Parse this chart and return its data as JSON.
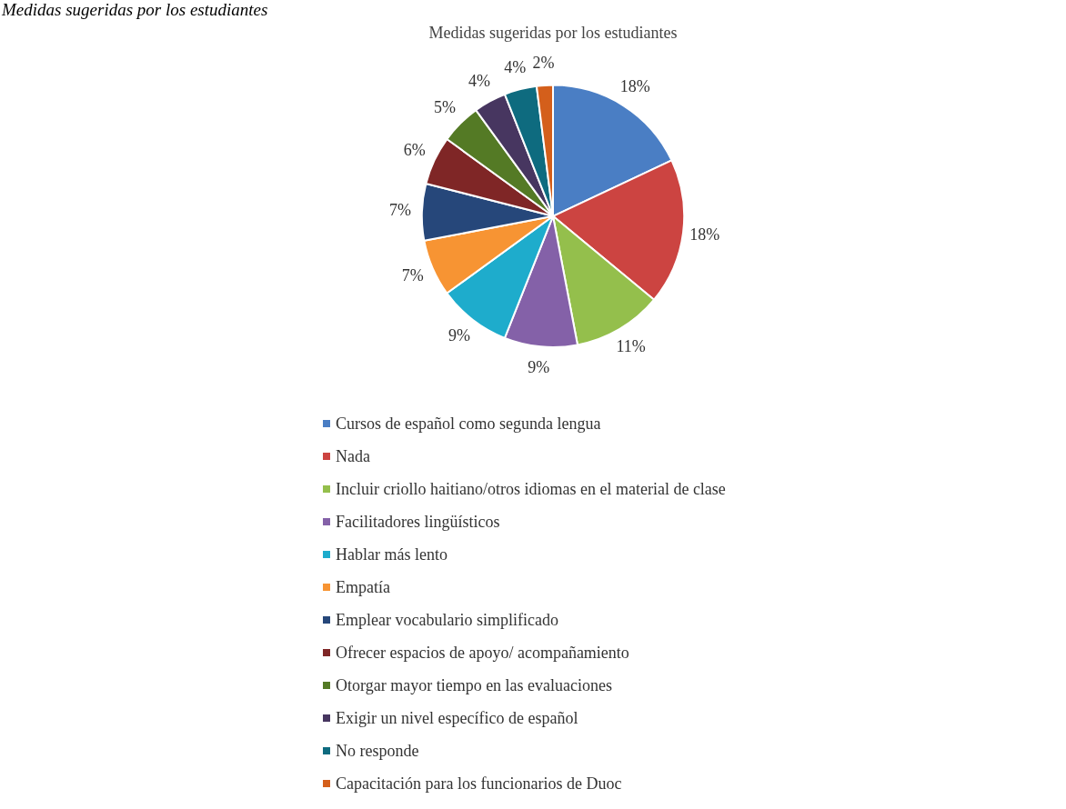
{
  "chart_data": {
    "type": "pie",
    "title": "Medidas sugeridas por los estudiantes",
    "annotations": [
      "Medidas sugeridas por los estudiantes"
    ],
    "categories": [
      "Cursos de español como segunda lengua",
      "Nada",
      "Incluir criollo haitiano/otros idiomas en el material de clase",
      "Facilitadores lingüísticos",
      "Hablar más lento",
      "Empatía",
      "Emplear vocabulario simplificado",
      "Ofrecer espacios de apoyo/ acompañamiento",
      "Otorgar mayor tiempo en las evaluaciones",
      "Exigir un nivel específico de español",
      "No responde",
      "Capacitación para los funcionarios de Duoc"
    ],
    "values": [
      18,
      18,
      11,
      9,
      9,
      7,
      7,
      6,
      5,
      4,
      4,
      2
    ],
    "colors": [
      "#4a7ec4",
      "#cc4441",
      "#94bf4c",
      "#8461a8",
      "#1eaccc",
      "#f79433",
      "#26477a",
      "#7f2626",
      "#547a25",
      "#473660",
      "#0e6b7f",
      "#d45f1b"
    ],
    "value_labels": [
      "18%",
      "18%",
      "11%",
      "9%",
      "9%",
      "7%",
      "7%",
      "6%",
      "5%",
      "4%",
      "4%",
      "2%"
    ],
    "legend": "bottom"
  }
}
